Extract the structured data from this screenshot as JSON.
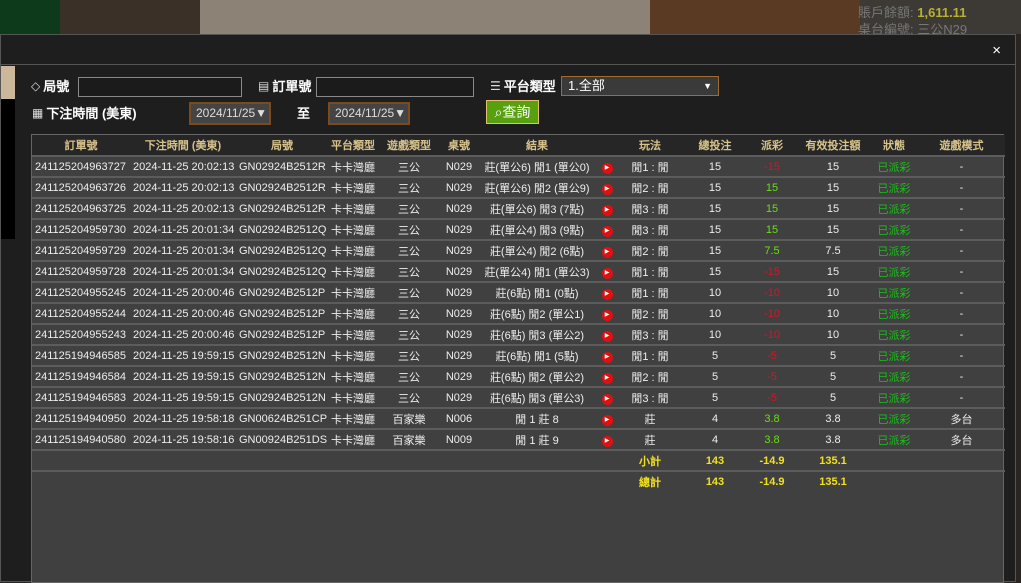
{
  "background": {
    "balance_label": "賬戶餘額:",
    "balance": "1,611.11",
    "table_label": "桌台編號:",
    "table_value": "三公N29"
  },
  "dialog": {
    "close": "×"
  },
  "filters": {
    "round_label": "局號",
    "round_value": "",
    "order_label": "訂單號",
    "order_value": "",
    "platform_label": "平台類型",
    "platform_value": "1.全部",
    "time_label": "下注時間 (美東)",
    "date_from": "2024/11/25▼",
    "to_label": "至",
    "date_to": "2024/11/25▼",
    "query_label": "查詢"
  },
  "columns": [
    "訂單號",
    "下注時間 (美東)",
    "局號",
    "平台類型",
    "遊戲類型",
    "桌號",
    "結果",
    "",
    "玩法",
    "總投注",
    "派彩",
    "有效投注額",
    "狀態",
    "遊戲模式"
  ],
  "rows": [
    [
      "241125204963727",
      "2024-11-25 20:02:13",
      "GN02924B2512R",
      "卡卡灣廳",
      "三公",
      "N029",
      "莊(單公6) 閒1 (單公0)",
      "閒1 : 閒",
      "15",
      "-15",
      "15",
      "已派彩",
      "-"
    ],
    [
      "241125204963726",
      "2024-11-25 20:02:13",
      "GN02924B2512R",
      "卡卡灣廳",
      "三公",
      "N029",
      "莊(單公6) 閒2 (單公9)",
      "閒2 : 閒",
      "15",
      "15",
      "15",
      "已派彩",
      "-"
    ],
    [
      "241125204963725",
      "2024-11-25 20:02:13",
      "GN02924B2512R",
      "卡卡灣廳",
      "三公",
      "N029",
      "莊(單公6) 閒3 (7點)",
      "閒3 : 閒",
      "15",
      "15",
      "15",
      "已派彩",
      "-"
    ],
    [
      "241125204959730",
      "2024-11-25 20:01:34",
      "GN02924B2512Q",
      "卡卡灣廳",
      "三公",
      "N029",
      "莊(單公4) 閒3 (9點)",
      "閒3 : 閒",
      "15",
      "15",
      "15",
      "已派彩",
      "-"
    ],
    [
      "241125204959729",
      "2024-11-25 20:01:34",
      "GN02924B2512Q",
      "卡卡灣廳",
      "三公",
      "N029",
      "莊(單公4) 閒2 (6點)",
      "閒2 : 閒",
      "15",
      "7.5",
      "7.5",
      "已派彩",
      "-"
    ],
    [
      "241125204959728",
      "2024-11-25 20:01:34",
      "GN02924B2512Q",
      "卡卡灣廳",
      "三公",
      "N029",
      "莊(單公4) 閒1 (單公3)",
      "閒1 : 閒",
      "15",
      "-15",
      "15",
      "已派彩",
      "-"
    ],
    [
      "241125204955245",
      "2024-11-25 20:00:46",
      "GN02924B2512P",
      "卡卡灣廳",
      "三公",
      "N029",
      "莊(6點) 閒1 (0點)",
      "閒1 : 閒",
      "10",
      "-10",
      "10",
      "已派彩",
      "-"
    ],
    [
      "241125204955244",
      "2024-11-25 20:00:46",
      "GN02924B2512P",
      "卡卡灣廳",
      "三公",
      "N029",
      "莊(6點) 閒2 (單公1)",
      "閒2 : 閒",
      "10",
      "-10",
      "10",
      "已派彩",
      "-"
    ],
    [
      "241125204955243",
      "2024-11-25 20:00:46",
      "GN02924B2512P",
      "卡卡灣廳",
      "三公",
      "N029",
      "莊(6點) 閒3 (單公2)",
      "閒3 : 閒",
      "10",
      "-10",
      "10",
      "已派彩",
      "-"
    ],
    [
      "241125194946585",
      "2024-11-25 19:59:15",
      "GN02924B2512N",
      "卡卡灣廳",
      "三公",
      "N029",
      "莊(6點) 閒1 (5點)",
      "閒1 : 閒",
      "5",
      "-5",
      "5",
      "已派彩",
      "-"
    ],
    [
      "241125194946584",
      "2024-11-25 19:59:15",
      "GN02924B2512N",
      "卡卡灣廳",
      "三公",
      "N029",
      "莊(6點) 閒2 (單公2)",
      "閒2 : 閒",
      "5",
      "-5",
      "5",
      "已派彩",
      "-"
    ],
    [
      "241125194946583",
      "2024-11-25 19:59:15",
      "GN02924B2512N",
      "卡卡灣廳",
      "三公",
      "N029",
      "莊(6點) 閒3 (單公3)",
      "閒3 : 閒",
      "5",
      "-5",
      "5",
      "已派彩",
      "-"
    ],
    [
      "241125194940950",
      "2024-11-25 19:58:18",
      "GN00624B251CP",
      "卡卡灣廳",
      "百家樂",
      "N006",
      "閒 1 莊 8",
      "莊",
      "4",
      "3.8",
      "3.8",
      "已派彩",
      "多台"
    ],
    [
      "241125194940580",
      "2024-11-25 19:58:16",
      "GN00924B251DS",
      "卡卡灣廳",
      "百家樂",
      "N009",
      "閒 1 莊 9",
      "莊",
      "4",
      "3.8",
      "3.8",
      "已派彩",
      "多台"
    ]
  ],
  "subtotal": {
    "label": "小計",
    "bet": "143",
    "payout": "-14.9",
    "valid": "135.1"
  },
  "total": {
    "label": "總計",
    "bet": "143",
    "payout": "-14.9",
    "valid": "135.1"
  },
  "colors": {
    "negative": "#d01828",
    "positive": "#66e010",
    "status": "#18c018",
    "header": "#d6c28a",
    "sum": "#f0e020"
  }
}
